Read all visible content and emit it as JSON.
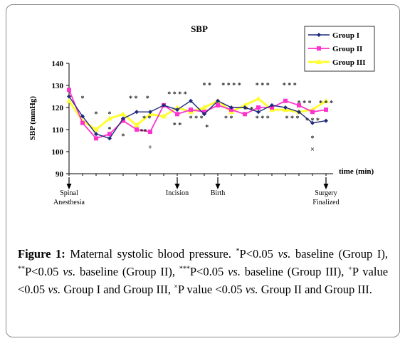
{
  "chart_data": {
    "type": "line",
    "title": "SBP",
    "ylabel": "SBP (mmHg)",
    "xlabel": "time (min)",
    "ylim": [
      90,
      140
    ],
    "yticks": [
      90,
      100,
      110,
      120,
      130,
      140
    ],
    "grid": false,
    "legend_position": "top-right",
    "points": 20,
    "event_markers": [
      {
        "index": 0,
        "label": [
          "Spinal",
          "Anesthesia"
        ]
      },
      {
        "index": 8,
        "label": [
          "Incision"
        ]
      },
      {
        "index": 11,
        "label": [
          "Birth"
        ]
      },
      {
        "index": 19,
        "label": [
          "Surgery",
          "Finalized"
        ]
      }
    ],
    "series": [
      {
        "name": "Group I",
        "color": "#1f2a7a",
        "marker": "diamond",
        "values": [
          125,
          116,
          108,
          106,
          115,
          118,
          118,
          121,
          119,
          123,
          117,
          123,
          120,
          120,
          118,
          121,
          120,
          118,
          113,
          114
        ]
      },
      {
        "name": "Group II",
        "color": "#ff33cc",
        "marker": "square",
        "values": [
          128,
          113,
          106,
          108,
          114,
          110,
          109,
          121,
          117,
          119,
          118,
          121,
          119,
          117,
          120,
          120,
          123,
          121,
          118,
          119
        ]
      },
      {
        "name": "Group III",
        "color": "#ffff33",
        "marker": "triangle",
        "values": [
          123,
          114,
          110,
          115,
          117,
          112,
          117,
          116,
          120,
          118,
          120,
          123,
          118,
          121,
          124,
          119,
          119,
          118,
          119,
          123
        ]
      }
    ],
    "annotations": [
      {
        "text": "*",
        "x": 1,
        "y": 124
      },
      {
        "text": "*",
        "x": 2,
        "y": 117
      },
      {
        "text": "*",
        "x": 3,
        "y": 117
      },
      {
        "text": "*",
        "x": 3,
        "y": 110
      },
      {
        "text": "*",
        "x": 4,
        "y": 107
      },
      {
        "text": "* *",
        "x": 4.75,
        "y": 124
      },
      {
        "text": "*",
        "x": 5.8,
        "y": 124
      },
      {
        "text": "* *",
        "x": 5.75,
        "y": 115
      },
      {
        "text": "**",
        "x": 5.5,
        "y": 109
      },
      {
        "text": "+",
        "x": 6,
        "y": 102
      },
      {
        "text": "* * * *",
        "x": 8,
        "y": 126
      },
      {
        "text": "* *",
        "x": 8,
        "y": 112
      },
      {
        "text": "* * *",
        "x": 9.4,
        "y": 115
      },
      {
        "text": "* *",
        "x": 10.2,
        "y": 130
      },
      {
        "text": "*",
        "x": 10.2,
        "y": 111
      },
      {
        "text": "* * * *",
        "x": 12,
        "y": 130
      },
      {
        "text": "* *",
        "x": 11.8,
        "y": 115
      },
      {
        "text": "* *",
        "x": 13.3,
        "y": 119
      },
      {
        "text": "* * *",
        "x": 14.3,
        "y": 130
      },
      {
        "text": "* * *",
        "x": 14.3,
        "y": 115
      },
      {
        "text": "* * *",
        "x": 16.3,
        "y": 130
      },
      {
        "text": "* * *",
        "x": 16.5,
        "y": 115
      },
      {
        "text": "* * *",
        "x": 17.4,
        "y": 122
      },
      {
        "text": "* * *",
        "x": 19,
        "y": 122
      },
      {
        "text": "* * *",
        "x": 18,
        "y": 114
      },
      {
        "text": "*",
        "x": 18,
        "y": 106
      },
      {
        "text": "×",
        "x": 18,
        "y": 101
      }
    ]
  },
  "caption": {
    "label": "Figure 1:",
    "text_1": " Maternal systolic blood pressure. ",
    "sup_1": "*",
    "text_2": "P<0.05 ",
    "vs_1": "vs.",
    "text_3": " baseline (Group I), ",
    "sup_2": "**",
    "text_4": "P<0.05 ",
    "vs_2": "vs.",
    "text_5": " baseline (Group II), ",
    "sup_3": "***",
    "text_6": "P<0.05 ",
    "vs_3": "vs.",
    "text_7": " baseline (Group III), ",
    "sup_4": "+",
    "text_8": "P value <0.05 ",
    "vs_4": "vs.",
    "text_9": " Group I and Group III, ",
    "sup_5": "×",
    "text_10": "P value <0.05 ",
    "vs_5": "vs.",
    "text_11": " Group II and Group III."
  }
}
